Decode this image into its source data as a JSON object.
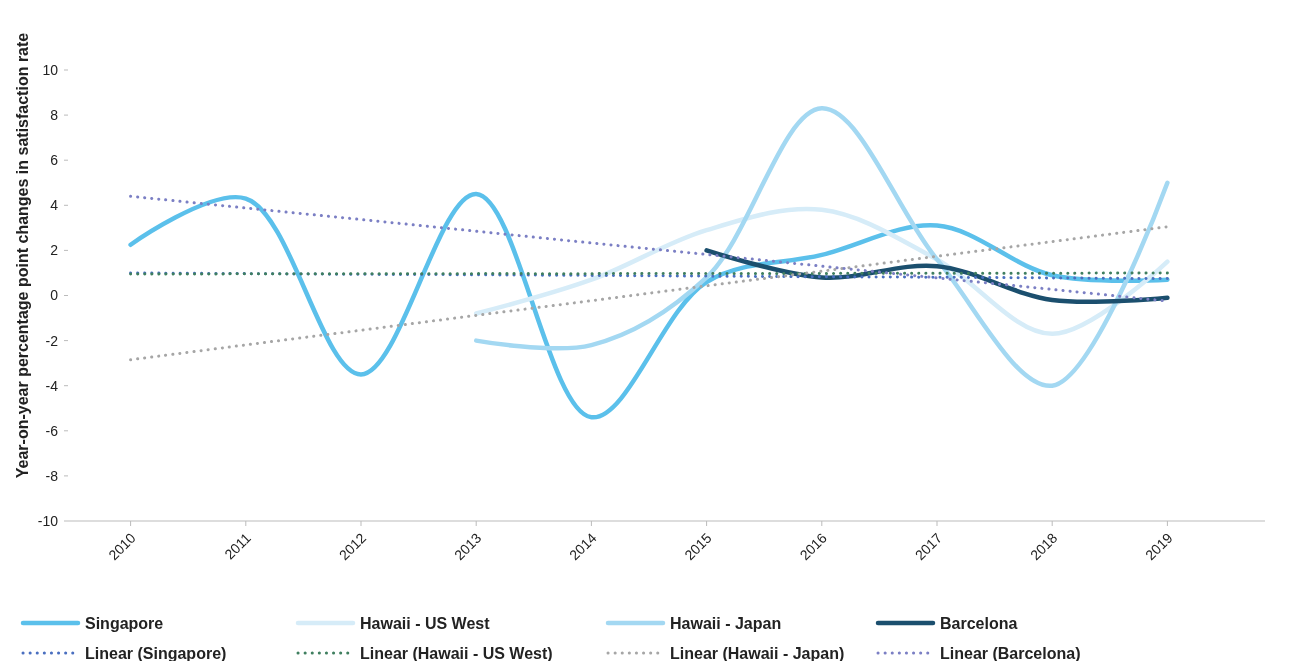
{
  "chart_data": {
    "type": "line",
    "ylabel": "Year-on-year percentage point changes in satisfaction rate",
    "categories": [
      "2010",
      "2011",
      "2012",
      "2013",
      "2014",
      "2015",
      "2016",
      "2017",
      "2018",
      "2019"
    ],
    "ylim": [
      -10,
      10
    ],
    "yticks": [
      -10,
      -8,
      -6,
      -4,
      -2,
      0,
      2,
      4,
      6,
      8,
      10
    ],
    "grid": false,
    "legend": "bottom",
    "series": [
      {
        "name": "Singapore",
        "color": "#5bc0eb",
        "values": [
          2.25,
          4.3,
          -3.5,
          4.5,
          -5.4,
          0.6,
          1.8,
          3.1,
          0.9,
          0.7
        ]
      },
      {
        "name": "Hawaii - US West",
        "color": "#d6ecf8",
        "values": [
          null,
          null,
          null,
          -0.8,
          0.7,
          2.9,
          3.8,
          1.6,
          -1.7,
          1.5
        ]
      },
      {
        "name": "Hawaii - Japan",
        "color": "#a3d8f2",
        "values": [
          null,
          null,
          null,
          -2.0,
          -2.2,
          0.8,
          8.3,
          1.6,
          -4.0,
          5.0
        ]
      },
      {
        "name": "Barcelona",
        "color": "#1b4f6e",
        "values": [
          null,
          null,
          null,
          null,
          null,
          2.0,
          0.8,
          1.3,
          -0.2,
          -0.1
        ]
      },
      {
        "name": "Linear (Singapore)",
        "color": "#4a6fc0",
        "line_style": "dotted",
        "values": [
          1.0,
          0.97,
          0.94,
          0.92,
          0.89,
          0.86,
          0.83,
          0.81,
          0.78,
          0.75
        ]
      },
      {
        "name": "Linear (Hawaii - US West)",
        "color": "#3f7f5f",
        "line_style": "dotted",
        "values": [
          0.95,
          0.96,
          0.96,
          0.97,
          0.97,
          0.98,
          0.98,
          0.99,
          0.99,
          1.0
        ]
      },
      {
        "name": "Linear (Hawaii - Japan)",
        "color": "#a6a6a6",
        "line_style": "dotted",
        "values": [
          -2.85,
          -2.19,
          -1.54,
          -0.88,
          -0.23,
          0.43,
          1.08,
          1.74,
          2.39,
          3.05
        ]
      },
      {
        "name": "Linear (Barcelona)",
        "color": "#7b7fc4",
        "line_style": "dotted",
        "values": [
          4.4,
          3.88,
          3.37,
          2.85,
          2.33,
          1.82,
          1.3,
          0.78,
          0.27,
          -0.25
        ]
      }
    ]
  }
}
